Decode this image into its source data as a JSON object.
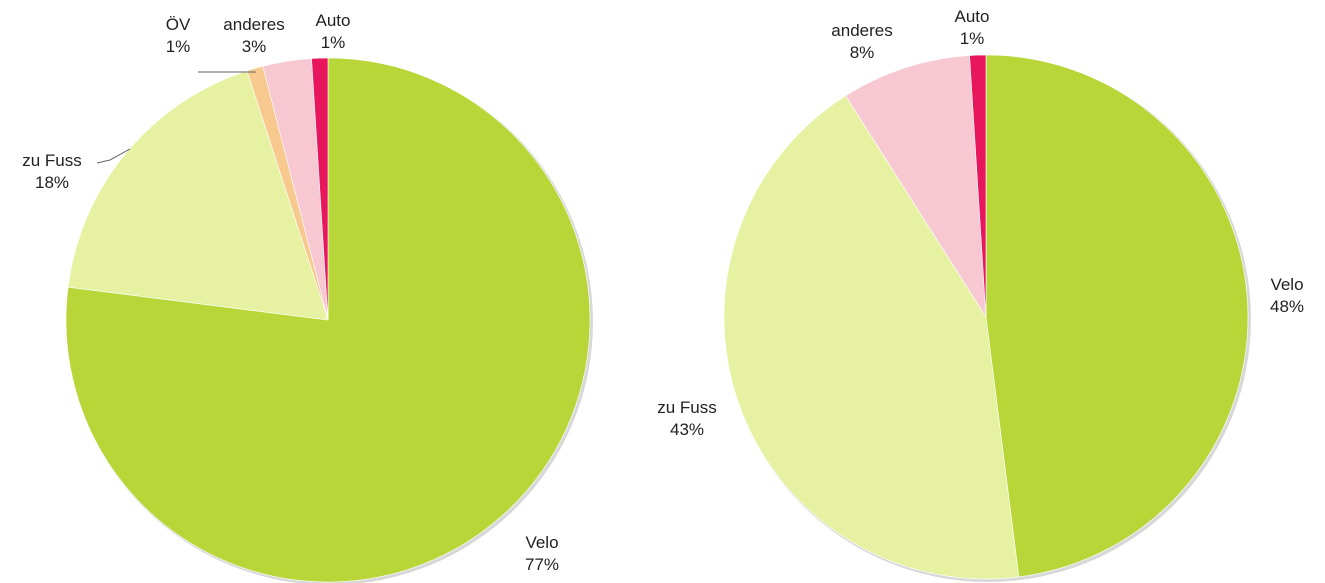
{
  "chart_data": [
    {
      "type": "pie",
      "slices": [
        {
          "label": "Velo",
          "pct_label": "77%",
          "value": 77,
          "color": "#b8d638"
        },
        {
          "label": "zu Fuss",
          "pct_label": "18%",
          "value": 18,
          "color": "#e6f2a2"
        },
        {
          "label": "ÖV",
          "pct_label": "1%",
          "value": 1,
          "color": "#f7c98e"
        },
        {
          "label": "anderes",
          "pct_label": "3%",
          "value": 3,
          "color": "#f8c8d2"
        },
        {
          "label": "Auto",
          "pct_label": "1%",
          "value": 1,
          "color": "#e8175d"
        }
      ]
    },
    {
      "type": "pie",
      "slices": [
        {
          "label": "Velo",
          "pct_label": "48%",
          "value": 48,
          "color": "#b8d638"
        },
        {
          "label": "zu Fuss",
          "pct_label": "43%",
          "value": 43,
          "color": "#e6f2a2"
        },
        {
          "label": "anderes",
          "pct_label": "8%",
          "value": 8,
          "color": "#f8c8d2"
        },
        {
          "label": "Auto",
          "pct_label": "1%",
          "value": 1,
          "color": "#e8175d"
        }
      ]
    }
  ]
}
